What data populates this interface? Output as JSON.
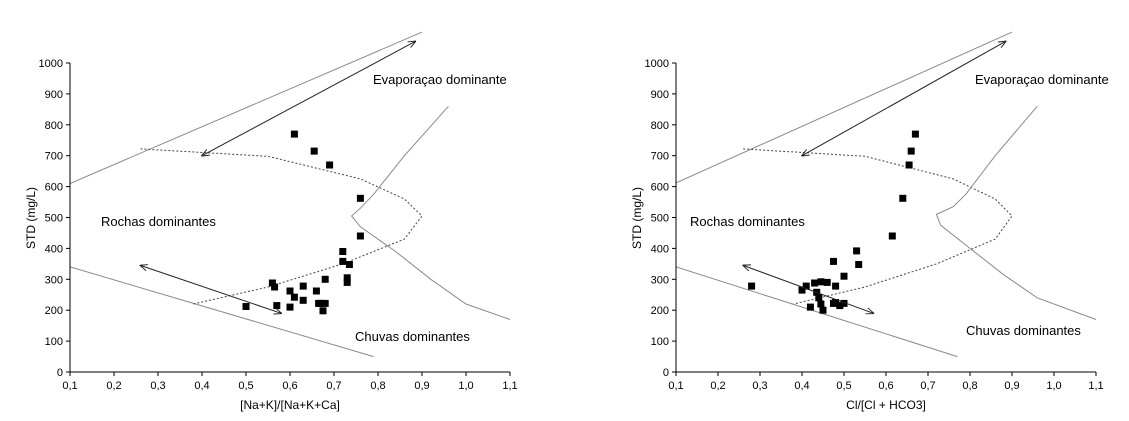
{
  "chart_data": [
    {
      "type": "scatter",
      "xlabel": "[Na+K]/[Na+K+Ca]",
      "ylabel": "STD (mg/L)",
      "xlim": [
        0.1,
        1.1
      ],
      "ylim": [
        0,
        1000
      ],
      "xticks": [
        "0,1",
        "0,2",
        "0,3",
        "0,4",
        "0,5",
        "0,6",
        "0,7",
        "0,8",
        "0,9",
        "1,0",
        "1,1"
      ],
      "yticks": [
        "0",
        "100",
        "200",
        "300",
        "400",
        "500",
        "600",
        "700",
        "800",
        "900",
        "1000"
      ],
      "grid": false,
      "legend": "none",
      "annotations": [
        "Evaporaçao dominante",
        "Rochas dominantes",
        "Chuvas dominantes"
      ],
      "points": [
        [
          0.61,
          770
        ],
        [
          0.655,
          715
        ],
        [
          0.69,
          670
        ],
        [
          0.76,
          562
        ],
        [
          0.76,
          440
        ],
        [
          0.72,
          390
        ],
        [
          0.72,
          358
        ],
        [
          0.735,
          348
        ],
        [
          0.73,
          305
        ],
        [
          0.73,
          290
        ],
        [
          0.68,
          300
        ],
        [
          0.66,
          262
        ],
        [
          0.665,
          222
        ],
        [
          0.67,
          222
        ],
        [
          0.675,
          198
        ],
        [
          0.68,
          222
        ],
        [
          0.63,
          278
        ],
        [
          0.63,
          232
        ],
        [
          0.61,
          242
        ],
        [
          0.6,
          262
        ],
        [
          0.6,
          210
        ],
        [
          0.56,
          288
        ],
        [
          0.565,
          275
        ],
        [
          0.57,
          215
        ],
        [
          0.5,
          212
        ]
      ]
    },
    {
      "type": "scatter",
      "xlabel": "Cl/[Cl + HCO3]",
      "ylabel": "STD (mg/L)",
      "xlim": [
        0.1,
        1.1
      ],
      "ylim": [
        0,
        1000
      ],
      "xticks": [
        "0,1",
        "0,2",
        "0,3",
        "0,4",
        "0,5",
        "0,6",
        "0,7",
        "0,8",
        "0,9",
        "1,0",
        "1,1"
      ],
      "yticks": [
        "0",
        "100",
        "200",
        "300",
        "400",
        "500",
        "600",
        "700",
        "800",
        "900",
        "1000"
      ],
      "grid": false,
      "legend": "none",
      "annotations": [
        "Evaporaçao dominante",
        "Rochas dominantes",
        "Chuvas dominantes"
      ],
      "points": [
        [
          0.67,
          770
        ],
        [
          0.66,
          715
        ],
        [
          0.655,
          670
        ],
        [
          0.64,
          562
        ],
        [
          0.615,
          440
        ],
        [
          0.53,
          392
        ],
        [
          0.535,
          348
        ],
        [
          0.475,
          358
        ],
        [
          0.5,
          310
        ],
        [
          0.48,
          278
        ],
        [
          0.46,
          290
        ],
        [
          0.445,
          292
        ],
        [
          0.43,
          288
        ],
        [
          0.4,
          265
        ],
        [
          0.41,
          278
        ],
        [
          0.435,
          258
        ],
        [
          0.44,
          240
        ],
        [
          0.445,
          220
        ],
        [
          0.45,
          200
        ],
        [
          0.42,
          210
        ],
        [
          0.48,
          225
        ],
        [
          0.49,
          215
        ],
        [
          0.5,
          222
        ],
        [
          0.475,
          222
        ],
        [
          0.28,
          278
        ]
      ]
    }
  ]
}
